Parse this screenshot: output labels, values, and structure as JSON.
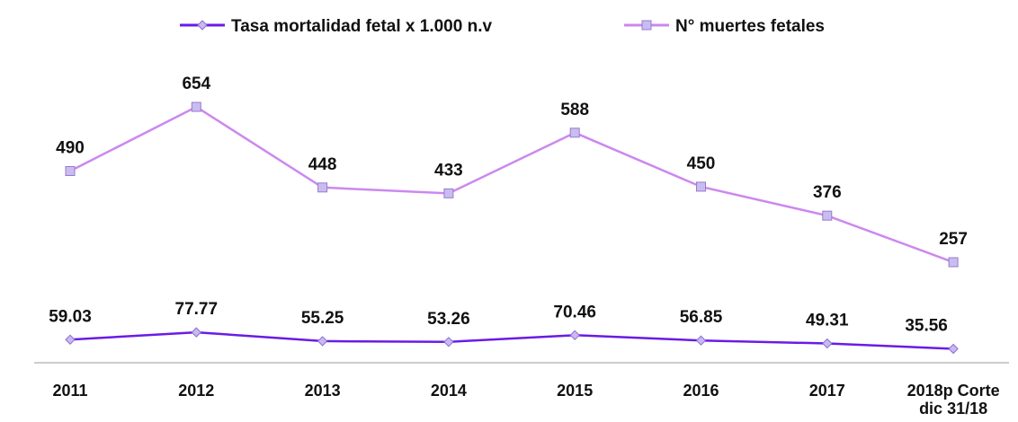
{
  "chart_data": {
    "type": "line",
    "categories": [
      "2011",
      "2012",
      "2013",
      "2014",
      "2015",
      "2016",
      "2017",
      "2018p Corte dic 31/18"
    ],
    "series": [
      {
        "name": "Tasa mortalidad fetal x 1.000 n.v",
        "color": "#6a1be6",
        "marker": "diamond",
        "marker_color": "#c9b8f2",
        "values": [
          59.03,
          77.77,
          55.25,
          53.26,
          70.46,
          56.85,
          49.31,
          35.56
        ]
      },
      {
        "name": "N° muertes fetales",
        "color": "#cc88ee",
        "marker": "square",
        "marker_color": "#c8bdf0",
        "values": [
          490,
          654,
          448,
          433,
          588,
          450,
          376,
          257
        ]
      }
    ],
    "ylim": [
      0,
      700
    ],
    "legend": "top"
  }
}
